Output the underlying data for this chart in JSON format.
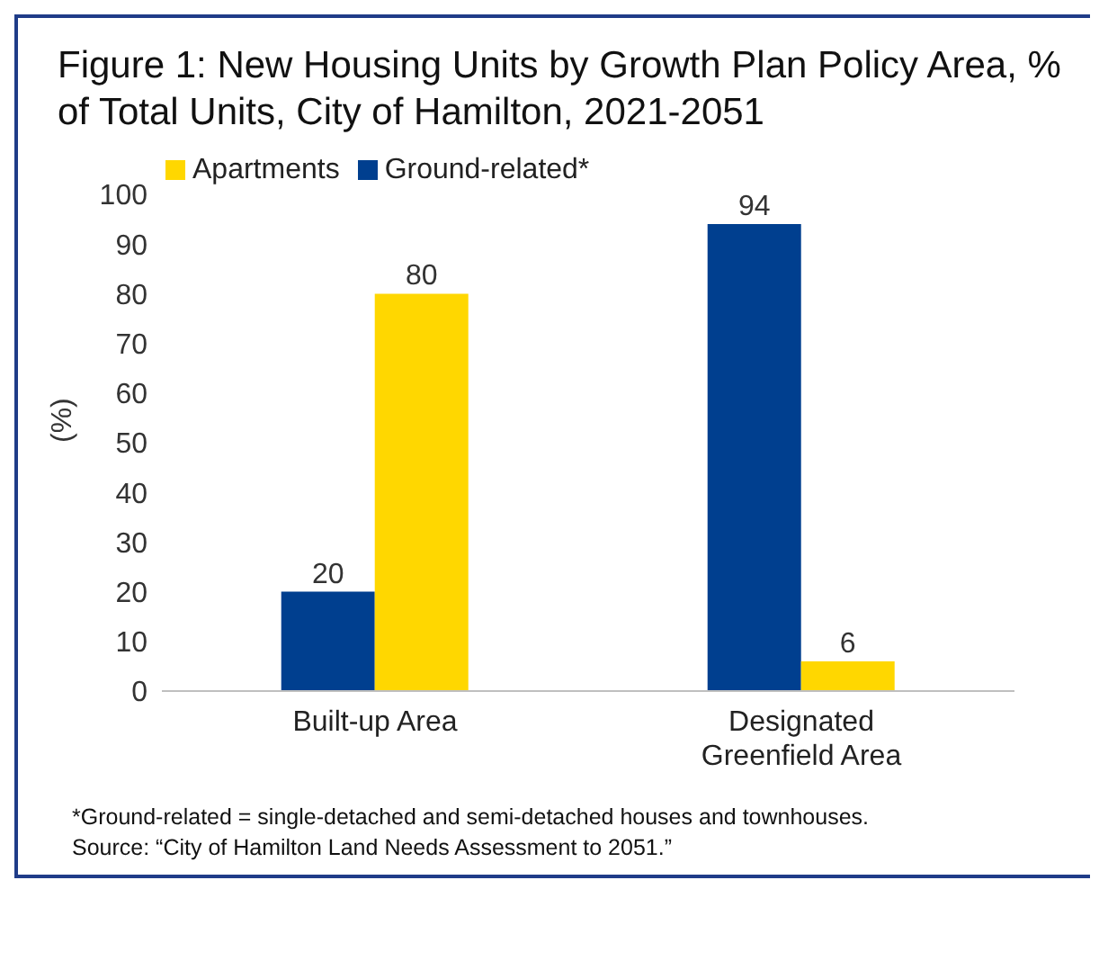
{
  "chart_data": {
    "type": "bar",
    "title": "Figure 1: New Housing Units by Growth Plan Policy Area, % of Total Units, City of Hamilton, 2021-2051",
    "ylabel": "(%)",
    "categories": [
      "Built-up Area",
      "Designated Greenfield Area"
    ],
    "series": [
      {
        "name": "Ground-related*",
        "color": "#003f8f",
        "values": [
          20,
          94
        ]
      },
      {
        "name": "Apartments",
        "color": "#ffd700",
        "values": [
          80,
          6
        ]
      }
    ],
    "ylim": [
      0,
      100
    ],
    "yticks": [
      0,
      10,
      20,
      30,
      40,
      50,
      60,
      70,
      80,
      90,
      100
    ],
    "grid": false,
    "legend": "top left",
    "data_labels": true,
    "annotations": [
      "*Ground-related = single-detached and semi-detached houses and townhouses.",
      "Source: “City of Hamilton Land Needs Assessment to 2051.”"
    ]
  }
}
